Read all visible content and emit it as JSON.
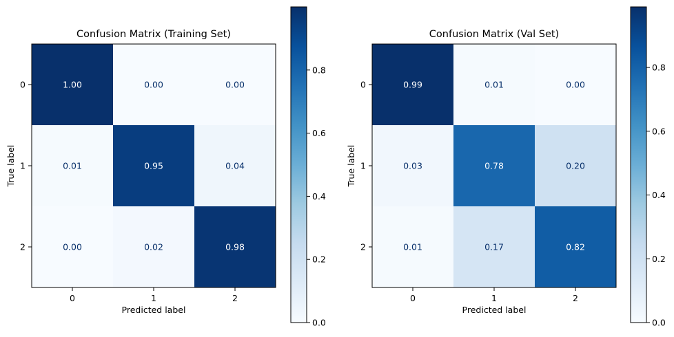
{
  "chart_data": [
    {
      "type": "heatmap",
      "title": "Confusion Matrix (Training Set)",
      "xlabel": "Predicted label",
      "ylabel": "True label",
      "x_categories": [
        "0",
        "1",
        "2"
      ],
      "y_categories": [
        "0",
        "1",
        "2"
      ],
      "values": [
        [
          1.0,
          0.0,
          0.0
        ],
        [
          0.01,
          0.95,
          0.04
        ],
        [
          0.0,
          0.02,
          0.98
        ]
      ],
      "value_labels": [
        [
          "1.00",
          "0.00",
          "0.00"
        ],
        [
          "0.01",
          "0.95",
          "0.04"
        ],
        [
          "0.00",
          "0.02",
          "0.98"
        ]
      ],
      "colormap": "Blues",
      "colorbar": {
        "range": [
          0,
          1.0
        ],
        "ticks": [
          0,
          0.2,
          0.4,
          0.6,
          0.8
        ],
        "tick_labels": [
          "0.0",
          "0.2",
          "0.4",
          "0.6",
          "0.8"
        ]
      }
    },
    {
      "type": "heatmap",
      "title": "Confusion Matrix (Val Set)",
      "xlabel": "Predicted label",
      "ylabel": "True label",
      "x_categories": [
        "0",
        "1",
        "2"
      ],
      "y_categories": [
        "0",
        "1",
        "2"
      ],
      "values": [
        [
          0.99,
          0.01,
          0.0
        ],
        [
          0.03,
          0.78,
          0.2
        ],
        [
          0.01,
          0.17,
          0.82
        ]
      ],
      "value_labels": [
        [
          "0.99",
          "0.01",
          "0.00"
        ],
        [
          "0.03",
          "0.78",
          "0.20"
        ],
        [
          "0.01",
          "0.17",
          "0.82"
        ]
      ],
      "colormap": "Blues",
      "colorbar": {
        "range": [
          0,
          0.99
        ],
        "ticks": [
          0,
          0.2,
          0.4,
          0.6,
          0.8
        ],
        "tick_labels": [
          "0.0",
          "0.2",
          "0.4",
          "0.6",
          "0.8"
        ]
      }
    }
  ],
  "colors": {
    "dark_text": "#08306b",
    "light_text": "#ffffff",
    "axis": "#000000"
  }
}
